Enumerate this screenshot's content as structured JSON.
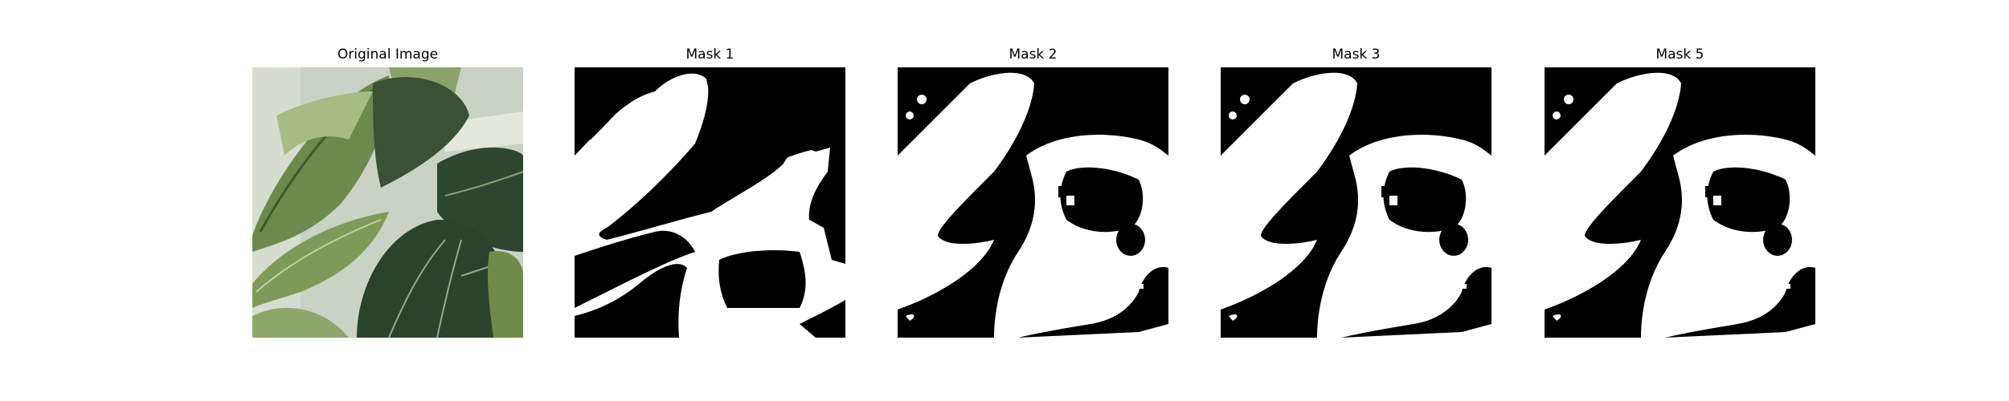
{
  "figure": {
    "panels": [
      {
        "title": "Original Image",
        "kind": "photo",
        "description_icon": "leaf-photo"
      },
      {
        "title": "Mask 1",
        "kind": "mask",
        "variant": "a"
      },
      {
        "title": "Mask 2",
        "kind": "mask",
        "variant": "b"
      },
      {
        "title": "Mask 3",
        "kind": "mask",
        "variant": "b"
      },
      {
        "title": "Mask 5",
        "kind": "mask",
        "variant": "b"
      }
    ],
    "colors": {
      "mask_background": "#000000",
      "mask_foreground": "#ffffff",
      "photo_background": "#c9d2c4",
      "leaf_dark": "#2f4a2d",
      "leaf_mid": "#5c7a43",
      "leaf_light": "#9bb072"
    }
  }
}
